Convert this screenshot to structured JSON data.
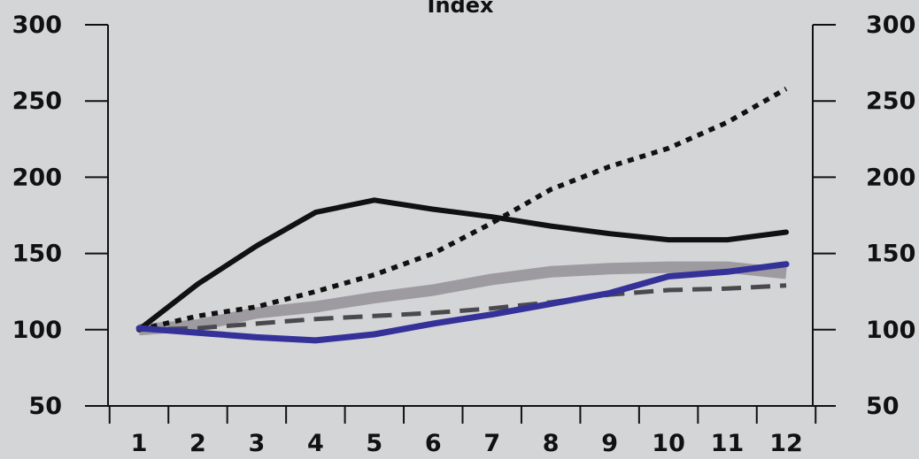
{
  "chart_data": {
    "type": "line",
    "title": "Index",
    "xlabel": "",
    "ylabel": "",
    "x": [
      1,
      2,
      3,
      4,
      5,
      6,
      7,
      8,
      9,
      10,
      11,
      12
    ],
    "xticks": [
      "1",
      "2",
      "3",
      "4",
      "5",
      "6",
      "7",
      "8",
      "9",
      "10",
      "11",
      "12"
    ],
    "ylim": [
      50,
      300
    ],
    "yticks": [
      "50",
      "100",
      "150",
      "200",
      "250",
      "300"
    ],
    "yticks_right": [
      "50",
      "100",
      "150",
      "200",
      "250",
      "300"
    ],
    "grid": false,
    "legend": "none",
    "series": [
      {
        "style": "solid-black",
        "color": "#111111",
        "values": [
          100,
          130,
          155,
          177,
          185,
          179,
          174,
          168,
          163,
          159,
          159,
          164
        ]
      },
      {
        "style": "dotted-black",
        "color": "#111111",
        "values": [
          100,
          109,
          115,
          125,
          136,
          150,
          170,
          192,
          207,
          219,
          236,
          258
        ]
      },
      {
        "style": "thick-light-gray",
        "color": "#9e9ba0",
        "values": [
          100,
          103,
          111,
          115,
          121,
          126,
          133,
          138,
          140,
          141,
          141,
          137
        ]
      },
      {
        "style": "dashed-dark-gray",
        "color": "#4a4a4e",
        "values": [
          100,
          101,
          104,
          107,
          109,
          111,
          114,
          118,
          123,
          126,
          127,
          129
        ]
      },
      {
        "style": "solid-blue",
        "color": "#343199",
        "values": [
          101,
          98,
          95,
          93,
          97,
          104,
          110,
          117,
          124,
          135,
          138,
          143
        ]
      }
    ]
  }
}
